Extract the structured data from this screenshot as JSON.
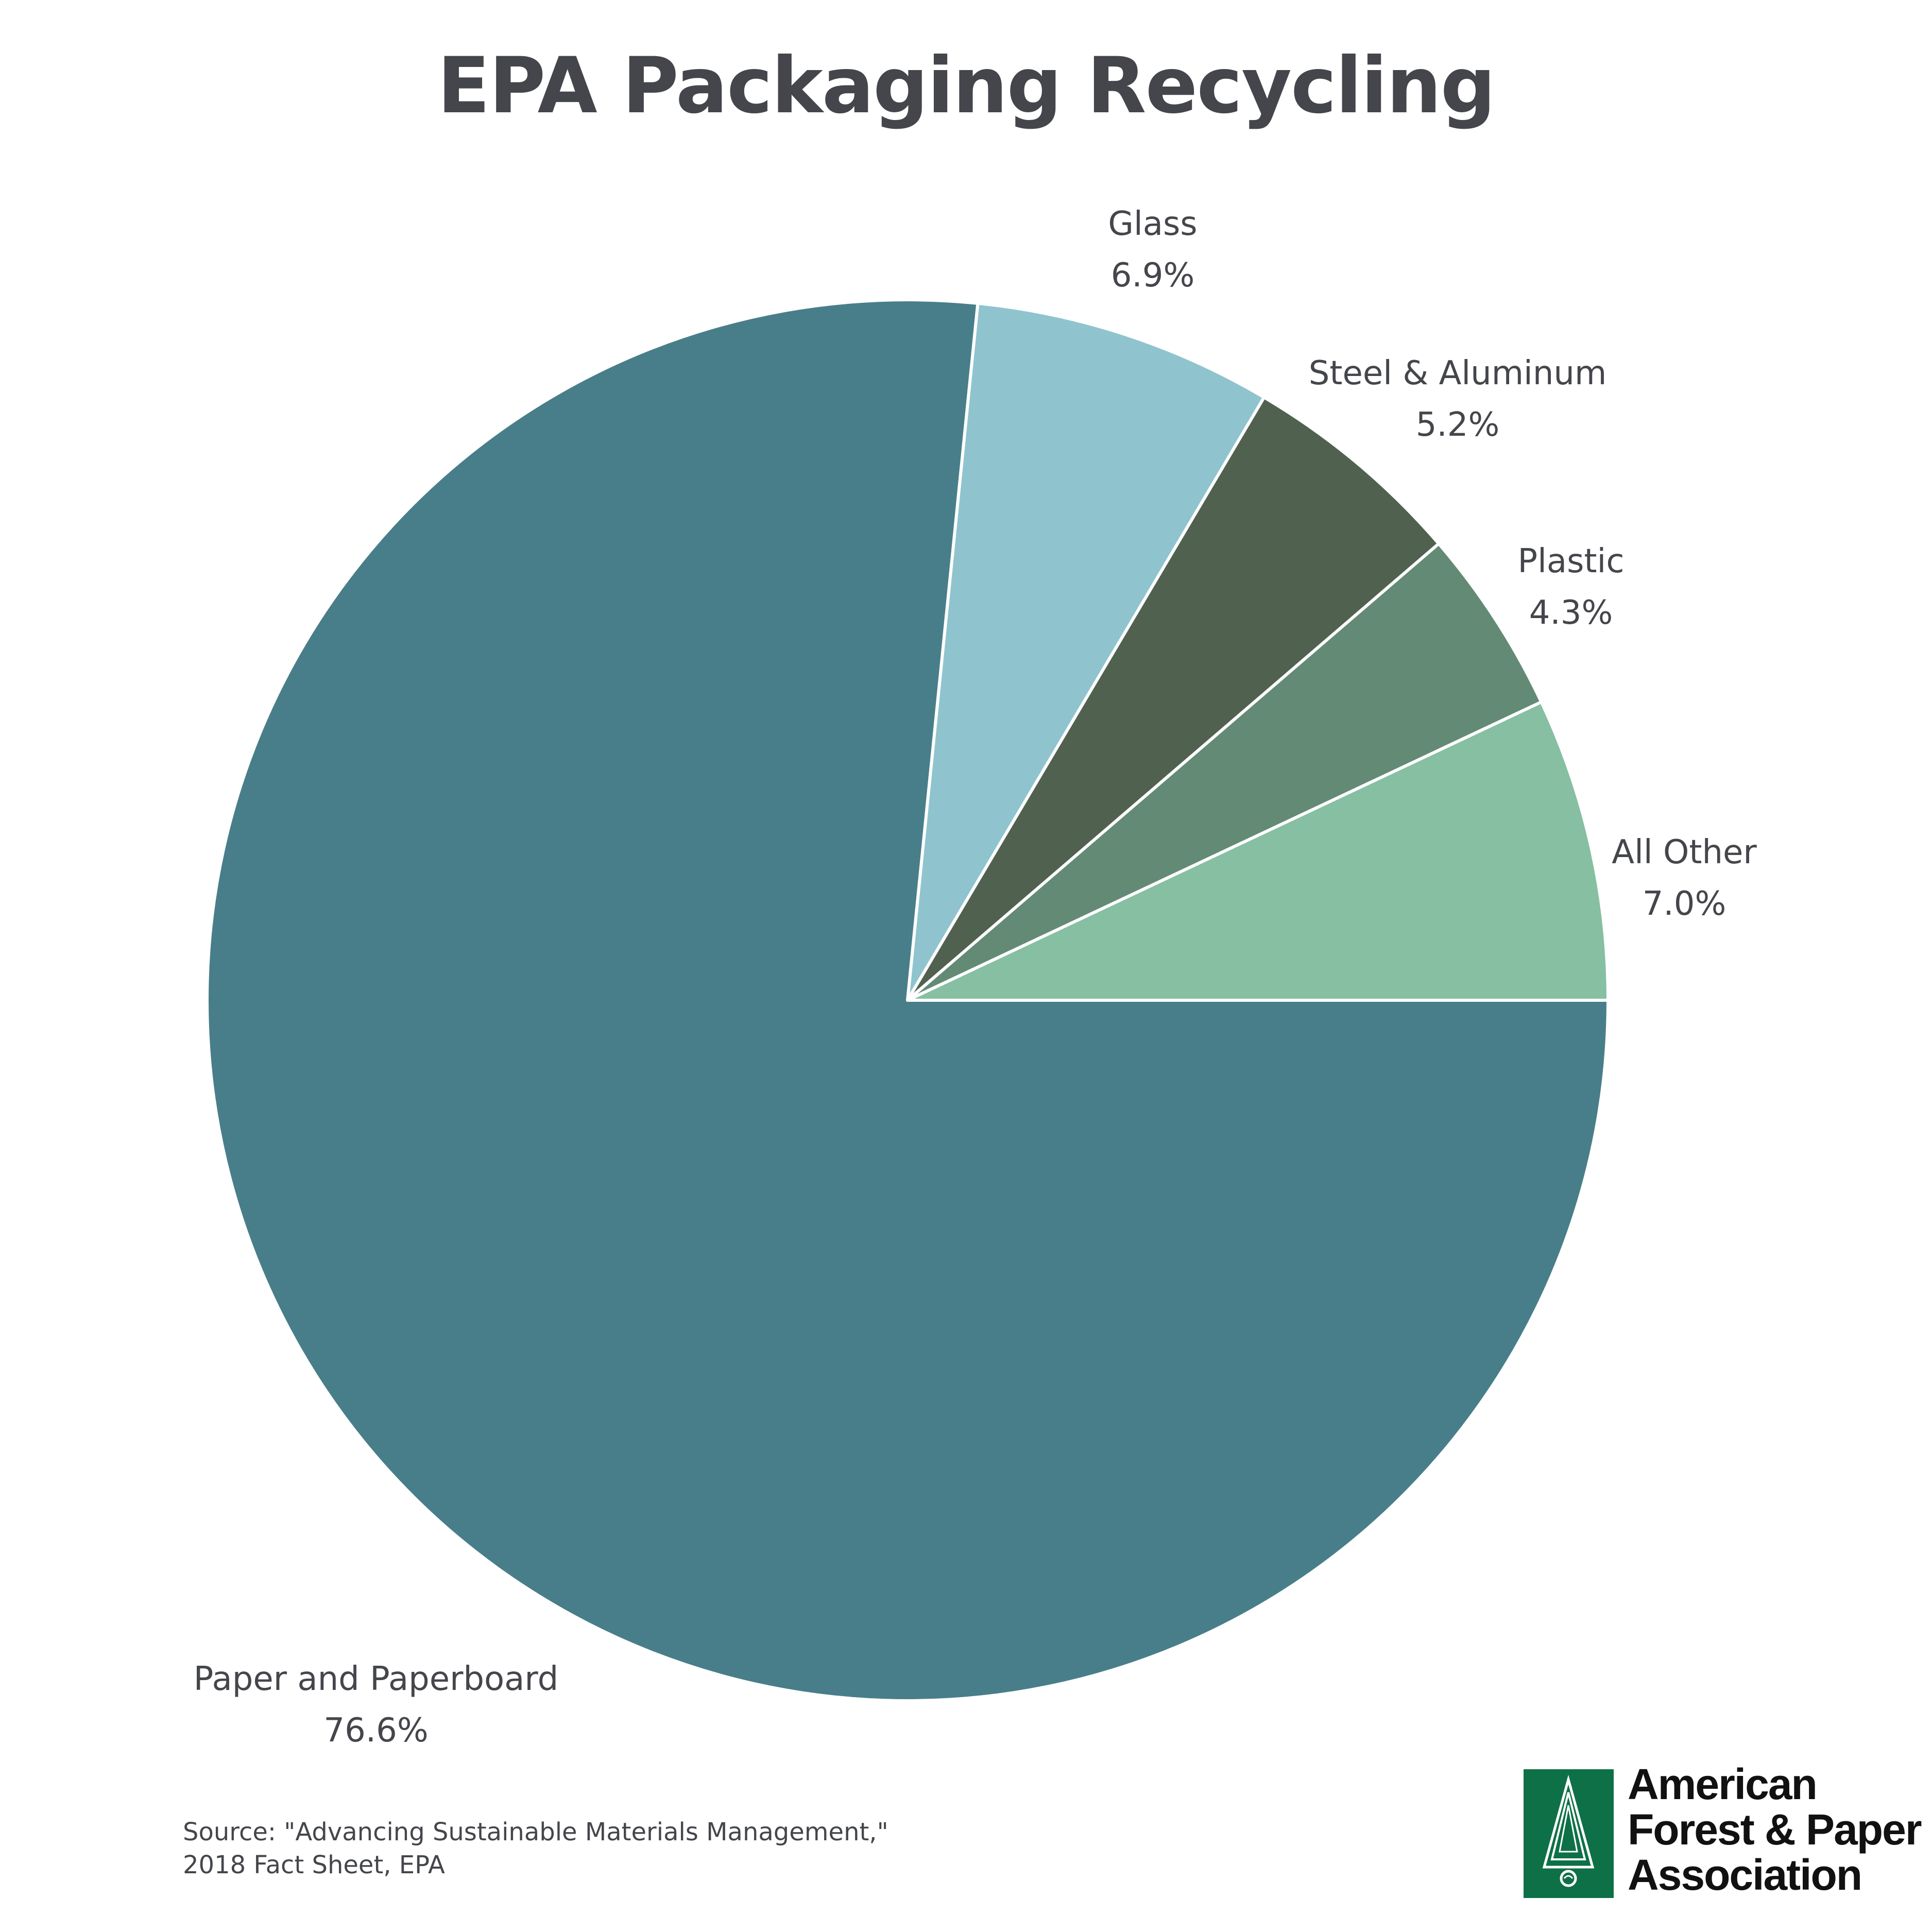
{
  "chart_data": {
    "type": "pie",
    "title": "EPA Packaging Recycling",
    "start_angle_deg": 0,
    "direction": "clockwise-from-3-oclock",
    "slices": [
      {
        "name": "Paper and Paperboard",
        "value": 76.6,
        "value_label": "76.6%",
        "color": "#487e89"
      },
      {
        "name": "Glass",
        "value": 6.9,
        "value_label": "6.9%",
        "color": "#8fc4cf"
      },
      {
        "name": "Steel & Aluminum",
        "value": 5.2,
        "value_label": "5.2%",
        "color": "#506150"
      },
      {
        "name": "Plastic",
        "value": 4.3,
        "value_label": "4.3%",
        "color": "#638a75"
      },
      {
        "name": "All Other",
        "value": 7.0,
        "value_label": "7.0%",
        "color": "#86bfa2"
      }
    ]
  },
  "source": {
    "line1": "Source:  \"Advancing Sustainable Materials Management,\"",
    "line2": "2018 Fact Sheet, EPA"
  },
  "logo": {
    "line1": "American",
    "line2": "Forest & Paper",
    "line3": "Association",
    "color": "#0e7047",
    "icon": "tree-icon"
  }
}
